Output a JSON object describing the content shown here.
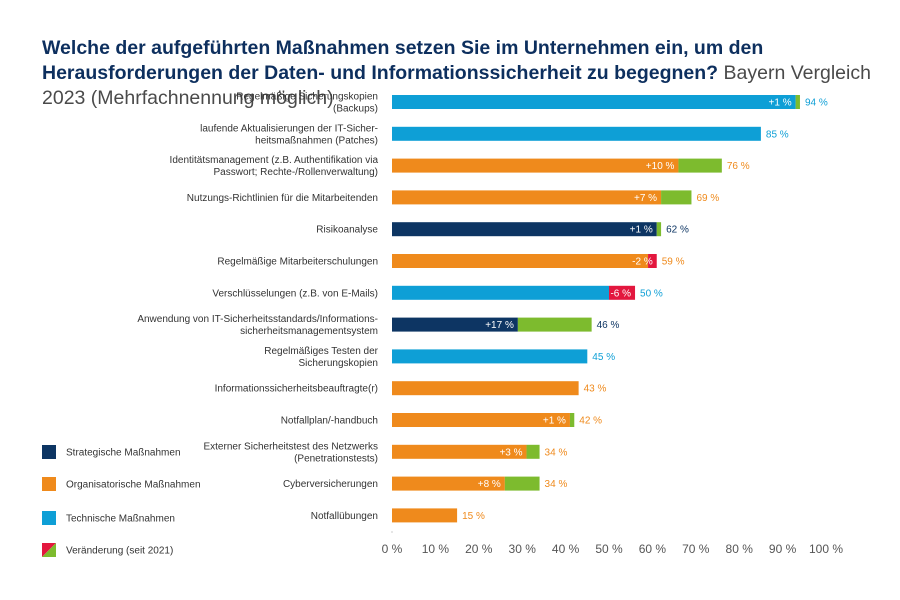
{
  "title": {
    "bold": "Welche der aufgeführten Maßnahmen setzen Sie im Unternehmen ein, um den Herausforderungen der Daten- und Informationssicherheit zu begegnen?",
    "light": "Bayern Vergleich 2023 (Mehrfachnennung möglich)"
  },
  "colors": {
    "strategisch": "#0d3563",
    "organisatorisch": "#ef8a1c",
    "technisch": "#0e9fd6",
    "plus": "#7dbb2e",
    "minus": "#e3173e"
  },
  "legend": [
    {
      "label": "Strategische Maßnahmen",
      "key": "strategisch"
    },
    {
      "label": "Organisatorische Maßnahmen",
      "key": "organisatorisch"
    },
    {
      "label": "Technische Maßnahmen",
      "key": "technisch"
    },
    {
      "label": "Veränderung (seit 2021)",
      "key": "change"
    }
  ],
  "chart_data": {
    "type": "bar",
    "orientation": "horizontal",
    "xlim": [
      0,
      100
    ],
    "x_ticks": [
      "0 %",
      "10 %",
      "20 %",
      "30 %",
      "40 %",
      "50 %",
      "60 %",
      "70 %",
      "80 %",
      "90 %",
      "100 %"
    ],
    "grid": false,
    "legend_position": "bottom-left",
    "bars": [
      {
        "label": [
          "Regelmäßige Sicherungskopien",
          "(Backups)"
        ],
        "value": 94,
        "value_label": "94 %",
        "change": 1,
        "change_label": "+1 %",
        "group": "technisch"
      },
      {
        "label": [
          "laufende Aktualisierungen der IT-Sicher-",
          "heitsmaßnahmen (Patches)"
        ],
        "value": 85,
        "value_label": "85 %",
        "change": null,
        "change_label": "",
        "group": "technisch"
      },
      {
        "label": [
          "Identitätsmanagement (z.B. Authentifikation via",
          "Passwort; Rechte-/Rollenverwaltung)"
        ],
        "value": 76,
        "value_label": "76 %",
        "change": 10,
        "change_label": "+10 %",
        "group": "organisatorisch"
      },
      {
        "label": [
          "Nutzungs-Richtlinien für die Mitarbeitenden"
        ],
        "value": 69,
        "value_label": "69 %",
        "change": 7,
        "change_label": "+7 %",
        "group": "organisatorisch"
      },
      {
        "label": [
          "Risikoanalyse"
        ],
        "value": 62,
        "value_label": "62 %",
        "change": 1,
        "change_label": "+1 %",
        "group": "strategisch"
      },
      {
        "label": [
          "Regelmäßige Mitarbeiterschulungen"
        ],
        "value": 59,
        "value_label": "59 %",
        "change": -2,
        "change_label": "-2 %",
        "group": "organisatorisch"
      },
      {
        "label": [
          "Verschlüsselungen (z.B. von E-Mails)"
        ],
        "value": 50,
        "value_label": "50 %",
        "change": -6,
        "change_label": "-6 %",
        "group": "technisch"
      },
      {
        "label": [
          "Anwendung von IT-Sicherheitsstandards/Informations-",
          "sicherheitsmanagementsystem"
        ],
        "value": 46,
        "value_label": "46 %",
        "change": 17,
        "change_label": "+17 %",
        "group": "strategisch"
      },
      {
        "label": [
          "Regelmäßiges Testen der",
          "Sicherungskopien"
        ],
        "value": 45,
        "value_label": "45 %",
        "change": null,
        "change_label": "",
        "group": "technisch"
      },
      {
        "label": [
          "Informationssicherheitsbeauftragte(r)"
        ],
        "value": 43,
        "value_label": "43 %",
        "change": null,
        "change_label": "",
        "group": "organisatorisch"
      },
      {
        "label": [
          "Notfallplan/-handbuch"
        ],
        "value": 42,
        "value_label": "42 %",
        "change": 1,
        "change_label": "+1 %",
        "group": "organisatorisch"
      },
      {
        "label": [
          "Externer Sicherheitstest des Netzwerks",
          "(Penetrationstests)"
        ],
        "value": 34,
        "value_label": "34 %",
        "change": 3,
        "change_label": "+3 %",
        "group": "organisatorisch"
      },
      {
        "label": [
          "Cyberversicherungen"
        ],
        "value": 34,
        "value_label": "34 %",
        "change": 8,
        "change_label": "+8 %",
        "group": "organisatorisch"
      },
      {
        "label": [
          "Notfallübungen"
        ],
        "value": 15,
        "value_label": "15 %",
        "change": null,
        "change_label": "",
        "group": "organisatorisch"
      }
    ]
  }
}
